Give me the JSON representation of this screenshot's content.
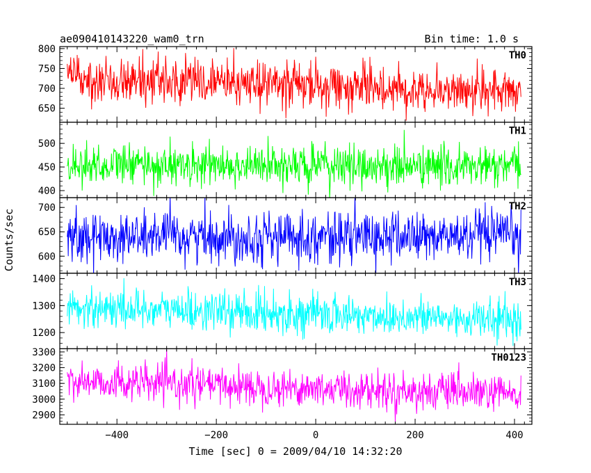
{
  "header": {
    "title": "ae090410143220_wam0_trn",
    "bin_time": "Bin time: 1.0 s"
  },
  "chart_data": {
    "type": "line",
    "ylabel": "Counts/sec",
    "xlabel": "Time [sec] 0 = 2009/04/10 14:32:20",
    "xlim": [
      -515,
      435
    ],
    "xticks": [
      -400,
      -200,
      0,
      200,
      400
    ],
    "x_start": -500,
    "x_end": 413,
    "bin_sec": 1.0,
    "panels": [
      {
        "name": "TH0",
        "color": "#ff0000",
        "ylim": [
          615,
          805
        ],
        "yticks": [
          650,
          700,
          750,
          800
        ],
        "level_start": 728,
        "level_end": 690,
        "noise_sd": 28
      },
      {
        "name": "TH1",
        "color": "#00ff00",
        "ylim": [
          385,
          545
        ],
        "yticks": [
          400,
          450,
          500
        ],
        "level_start": 455,
        "level_end": 450,
        "noise_sd": 22
      },
      {
        "name": "TH2",
        "color": "#0000ff",
        "ylim": [
          565,
          720
        ],
        "yticks": [
          600,
          650,
          700
        ],
        "level_start": 640,
        "level_end": 640,
        "noise_sd": 26
      },
      {
        "name": "TH3",
        "color": "#00ffff",
        "ylim": [
          1140,
          1420
        ],
        "yticks": [
          1200,
          1300,
          1400
        ],
        "level_start": 1295,
        "level_end": 1245,
        "noise_sd": 36
      },
      {
        "name": "TH0123",
        "color": "#ff00ff",
        "ylim": [
          2840,
          3320
        ],
        "yticks": [
          2900,
          3000,
          3100,
          3200,
          3300
        ],
        "level_start": 3115,
        "level_end": 3030,
        "noise_sd": 58
      }
    ]
  }
}
